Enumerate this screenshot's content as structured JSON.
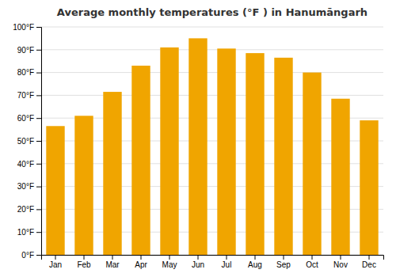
{
  "chart_data": {
    "type": "bar",
    "title": "Average monthly temperatures (°F ) in Hanumāngarh",
    "categories": [
      "Jan",
      "Feb",
      "Mar",
      "Apr",
      "May",
      "Jun",
      "Jul",
      "Aug",
      "Sep",
      "Oct",
      "Nov",
      "Dec"
    ],
    "values": [
      56.5,
      61.0,
      71.5,
      83.0,
      91.0,
      95.0,
      90.5,
      88.5,
      86.5,
      80.0,
      68.5,
      59.0
    ],
    "color": "#F0A500",
    "ylim": [
      0,
      100
    ],
    "yticks": [
      {
        "value": 0,
        "label": "0°F"
      },
      {
        "value": 10,
        "label": "10°F"
      },
      {
        "value": 20,
        "label": "20°F"
      },
      {
        "value": 30,
        "label": "30°F"
      },
      {
        "value": 40,
        "label": "40°F"
      },
      {
        "value": 50,
        "label": "50°F"
      },
      {
        "value": 60,
        "label": "60°F"
      },
      {
        "value": 70,
        "label": "70°F"
      },
      {
        "value": 80,
        "label": "80°F"
      },
      {
        "value": 90,
        "label": "90°F"
      },
      {
        "value": 100,
        "label": "100°F"
      }
    ],
    "grid": true
  }
}
